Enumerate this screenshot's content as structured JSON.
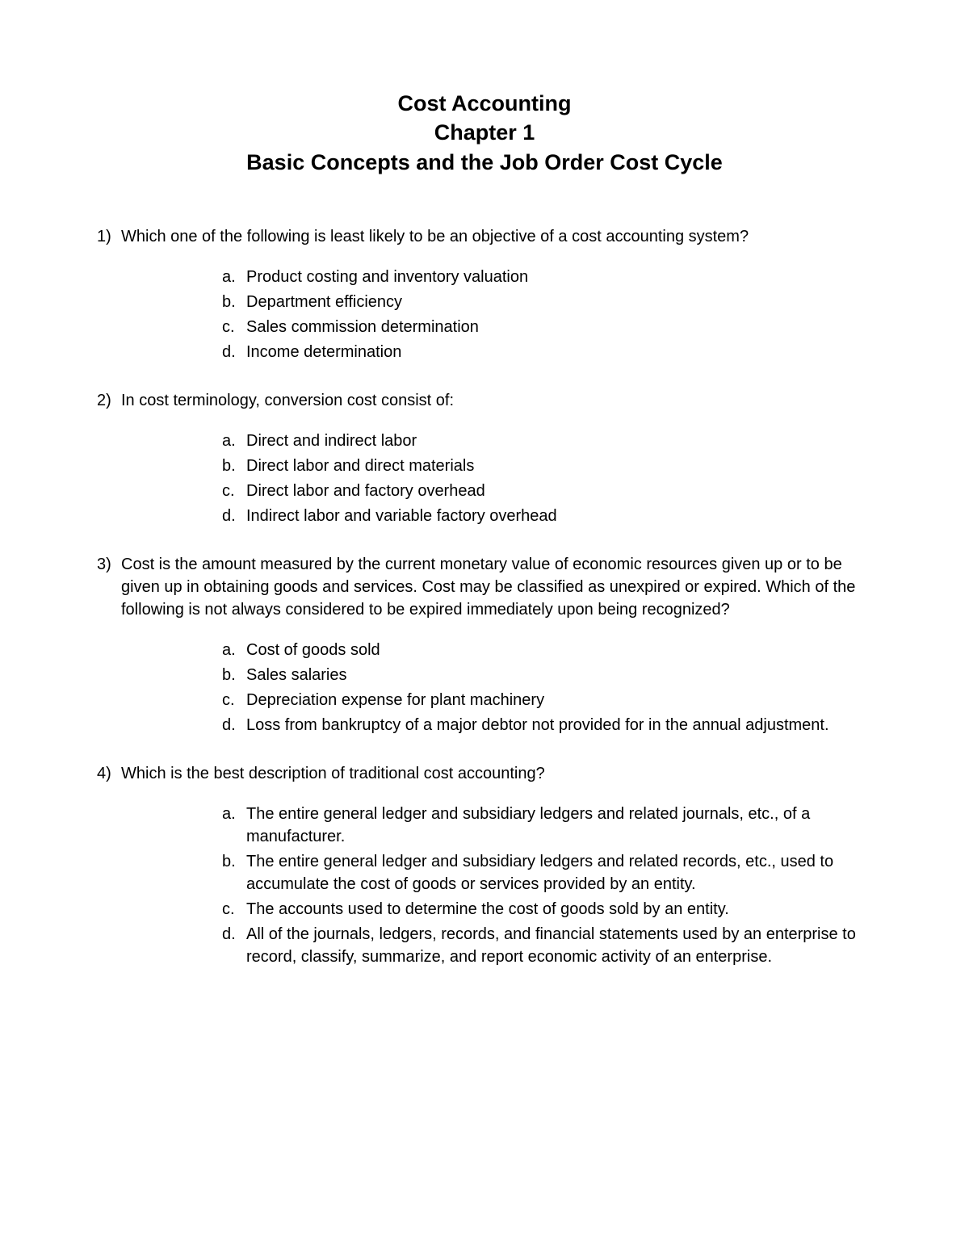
{
  "title": {
    "line1": "Cost Accounting",
    "line2": "Chapter 1",
    "line3": "Basic Concepts and the Job Order Cost Cycle"
  },
  "questions": [
    {
      "number": "1)",
      "text": "Which one of the following is least likely to be an objective of a cost accounting system?",
      "options": [
        {
          "letter": "a.",
          "text": "Product costing and inventory valuation"
        },
        {
          "letter": "b.",
          "text": "Department efficiency"
        },
        {
          "letter": "c.",
          "text": "Sales commission determination"
        },
        {
          "letter": "d.",
          "text": "Income determination"
        }
      ]
    },
    {
      "number": "2)",
      "text": "In cost terminology, conversion cost consist of:",
      "options": [
        {
          "letter": "a.",
          "text": "Direct and indirect labor"
        },
        {
          "letter": "b.",
          "text": "Direct labor and direct materials"
        },
        {
          "letter": "c.",
          "text": "Direct labor and factory overhead"
        },
        {
          "letter": "d.",
          "text": "Indirect labor and variable factory overhead"
        }
      ]
    },
    {
      "number": "3)",
      "text": "Cost is the amount measured by the current monetary value of economic resources given up or to be given up in obtaining goods and services. Cost may be classified as unexpired or expired. Which of the following is not always considered to be expired immediately upon being recognized?",
      "options": [
        {
          "letter": "a.",
          "text": "Cost of goods sold"
        },
        {
          "letter": "b.",
          "text": "Sales salaries"
        },
        {
          "letter": "c.",
          "text": "Depreciation expense for plant machinery"
        },
        {
          "letter": "d.",
          "text": "Loss from bankruptcy of a major debtor not provided for in the annual adjustment."
        }
      ]
    },
    {
      "number": "4)",
      "text": "Which is the best description of traditional cost accounting?",
      "options": [
        {
          "letter": "a.",
          "text": "The entire general ledger and subsidiary ledgers and related journals, etc., of a manufacturer."
        },
        {
          "letter": "b.",
          "text": "The entire general ledger and subsidiary ledgers and related records, etc., used to accumulate the cost of goods or services provided by an entity."
        },
        {
          "letter": "c.",
          "text": "The accounts used to determine the cost of goods sold by an entity."
        },
        {
          "letter": "d.",
          "text": "All of the journals, ledgers, records, and financial statements used by an enterprise to record, classify, summarize, and report economic activity of an enterprise."
        }
      ]
    }
  ]
}
